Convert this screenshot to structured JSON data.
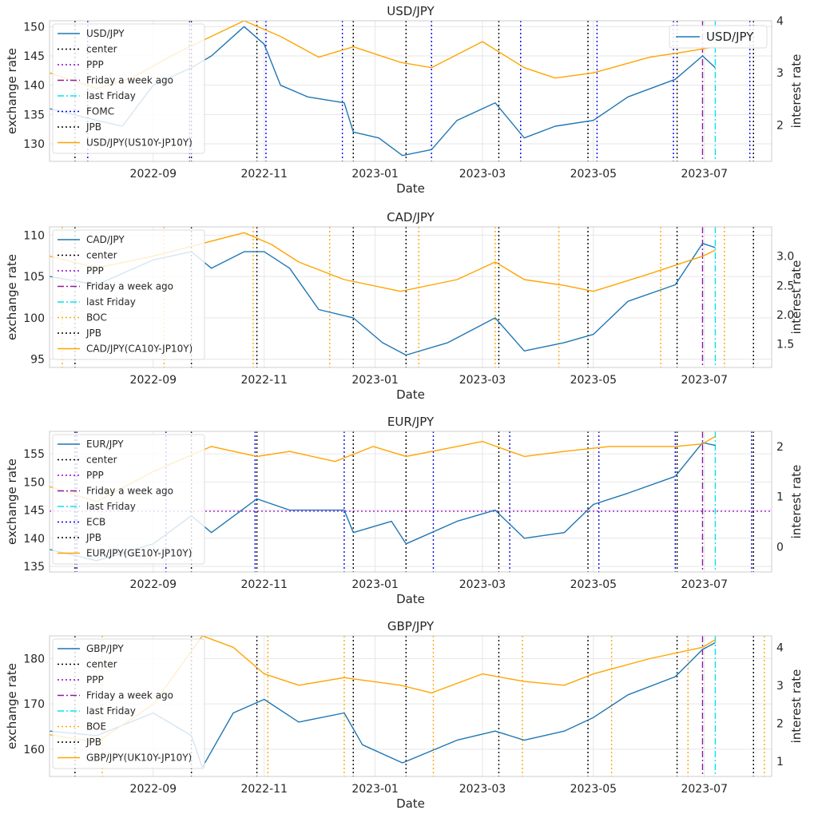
{
  "chart_data": [
    {
      "type": "line",
      "title": "USD/JPY",
      "xlabel": "Date",
      "ylabel": "exchange rate",
      "ylabel2": "interest rate",
      "x_range": [
        "2022-07-06",
        "2023-08-07"
      ],
      "x_ticks": [
        "2022-09",
        "2022-11",
        "2023-01",
        "2023-03",
        "2023-05",
        "2023-07"
      ],
      "ylim": [
        127,
        151
      ],
      "yticks": [
        130,
        135,
        140,
        145,
        150
      ],
      "ylim2": [
        1.3,
        4.0
      ],
      "yticks2": [
        2,
        3,
        4
      ],
      "grid": true,
      "legend_position": "upper-left",
      "secondary_legend_position": "upper-right",
      "secondary_legend_label": "USD/JPY",
      "series": [
        {
          "name": "USD/JPY",
          "axis": "left",
          "color": "#1f77b4",
          "x": [
            "2022-07-06",
            "2022-08-01",
            "2022-08-15",
            "2022-09-01",
            "2022-09-22",
            "2022-10-03",
            "2022-10-21",
            "2022-11-01",
            "2022-11-10",
            "2022-11-25",
            "2022-12-15",
            "2022-12-20",
            "2023-01-03",
            "2023-01-16",
            "2023-02-01",
            "2023-02-15",
            "2023-03-08",
            "2023-03-24",
            "2023-04-10",
            "2023-05-01",
            "2023-05-20",
            "2023-06-15",
            "2023-06-30",
            "2023-07-07"
          ],
          "y": [
            136,
            134,
            133,
            140,
            143,
            145,
            150,
            147,
            140,
            138,
            137,
            132,
            131,
            128,
            129,
            134,
            137,
            131,
            133,
            134,
            138,
            141,
            145,
            143
          ]
        },
        {
          "name": "USD/JPY(US10Y-JP10Y)",
          "axis": "right",
          "color": "#ffa500",
          "x": [
            "2022-07-06",
            "2022-08-01",
            "2022-08-20",
            "2022-09-15",
            "2022-10-21",
            "2022-11-10",
            "2022-12-01",
            "2022-12-20",
            "2023-01-15",
            "2023-02-01",
            "2023-03-01",
            "2023-03-24",
            "2023-04-10",
            "2023-05-01",
            "2023-06-01",
            "2023-06-20",
            "2023-07-07"
          ],
          "y": [
            3.0,
            2.7,
            2.9,
            3.4,
            4.0,
            3.7,
            3.3,
            3.5,
            3.2,
            3.1,
            3.6,
            3.1,
            2.9,
            3.0,
            3.3,
            3.4,
            3.5
          ]
        }
      ],
      "vlines": [
        {
          "name": "center",
          "style": "black-dotted",
          "x": [
            "2022-07-20"
          ]
        },
        {
          "name": "Friday a week ago",
          "style": "purple-dashdot",
          "x": [
            "2023-06-30"
          ]
        },
        {
          "name": "last Friday",
          "style": "cyan-dashdot",
          "x": [
            "2023-07-07"
          ]
        },
        {
          "name": "FOMC",
          "style": "blue-dotted",
          "x": [
            "2022-07-27",
            "2022-09-21",
            "2022-11-02",
            "2022-12-14",
            "2023-02-01",
            "2023-03-22",
            "2023-05-03",
            "2023-06-14",
            "2023-07-26"
          ]
        },
        {
          "name": "JPB",
          "style": "black-dotted",
          "x": [
            "2022-09-22",
            "2022-10-28",
            "2022-12-20",
            "2023-01-18",
            "2023-03-10",
            "2023-04-28",
            "2023-06-16",
            "2023-07-28"
          ]
        }
      ],
      "hlines": [],
      "legend": [
        "USD/JPY",
        "center",
        "PPP",
        "Friday a week ago",
        "last Friday",
        "FOMC",
        "JPB",
        "USD/JPY(US10Y-JP10Y)"
      ]
    },
    {
      "type": "line",
      "title": "CAD/JPY",
      "xlabel": "Date",
      "ylabel": "exchange rate",
      "ylabel2": "interest rate",
      "x_range": [
        "2022-07-06",
        "2023-08-07"
      ],
      "x_ticks": [
        "2022-09",
        "2022-11",
        "2023-01",
        "2023-03",
        "2023-05",
        "2023-07"
      ],
      "ylim": [
        94,
        111
      ],
      "yticks": [
        95,
        100,
        105,
        110
      ],
      "ylim2": [
        1.1,
        3.5
      ],
      "yticks2": [
        1.5,
        2.0,
        2.5,
        3.0
      ],
      "grid": true,
      "legend_position": "upper-left",
      "secondary_legend_position": "",
      "secondary_legend_label": "",
      "series": [
        {
          "name": "CAD/JPY",
          "axis": "left",
          "color": "#1f77b4",
          "x": [
            "2022-07-06",
            "2022-08-01",
            "2022-09-01",
            "2022-09-22",
            "2022-10-03",
            "2022-10-21",
            "2022-11-01",
            "2022-11-15",
            "2022-12-01",
            "2022-12-20",
            "2023-01-05",
            "2023-01-18",
            "2023-02-10",
            "2023-03-08",
            "2023-03-24",
            "2023-04-15",
            "2023-05-01",
            "2023-05-20",
            "2023-06-15",
            "2023-06-30",
            "2023-07-07"
          ],
          "y": [
            105,
            104,
            107,
            108,
            106,
            108,
            108,
            106,
            101,
            100,
            97,
            95.5,
            97,
            100,
            96,
            97,
            98,
            102,
            104,
            109,
            108.5
          ]
        },
        {
          "name": "CAD/JPY(CA10Y-JP10Y)",
          "axis": "right",
          "color": "#ffa500",
          "x": [
            "2022-07-06",
            "2022-08-01",
            "2022-09-01",
            "2022-10-21",
            "2022-11-05",
            "2022-11-20",
            "2022-12-15",
            "2023-01-15",
            "2023-02-15",
            "2023-03-08",
            "2023-03-24",
            "2023-04-15",
            "2023-05-01",
            "2023-06-01",
            "2023-06-30",
            "2023-07-07"
          ],
          "y": [
            3.0,
            2.8,
            3.0,
            3.4,
            3.2,
            2.9,
            2.6,
            2.4,
            2.6,
            2.9,
            2.6,
            2.5,
            2.4,
            2.7,
            3.0,
            3.1
          ]
        }
      ],
      "vlines": [
        {
          "name": "center",
          "style": "black-dotted",
          "x": [
            "2022-07-20"
          ]
        },
        {
          "name": "Friday a week ago",
          "style": "purple-dashdot",
          "x": [
            "2023-06-30"
          ]
        },
        {
          "name": "last Friday",
          "style": "cyan-dashdot",
          "x": [
            "2023-07-07"
          ]
        },
        {
          "name": "BOC",
          "style": "orange-dotted",
          "x": [
            "2022-07-13",
            "2022-09-07",
            "2022-10-26",
            "2022-12-07",
            "2023-01-25",
            "2023-03-08",
            "2023-04-12",
            "2023-06-07",
            "2023-07-12"
          ]
        },
        {
          "name": "JPB",
          "style": "black-dotted",
          "x": [
            "2022-09-22",
            "2022-10-28",
            "2022-12-20",
            "2023-01-18",
            "2023-03-10",
            "2023-04-28",
            "2023-06-16",
            "2023-07-28"
          ]
        }
      ],
      "hlines": [],
      "legend": [
        "CAD/JPY",
        "center",
        "PPP",
        "Friday a week ago",
        "last Friday",
        "BOC",
        "JPB",
        "CAD/JPY(CA10Y-JP10Y)"
      ]
    },
    {
      "type": "line",
      "title": "EUR/JPY",
      "xlabel": "Date",
      "ylabel": "exchange rate",
      "ylabel2": "interest rate",
      "x_range": [
        "2022-07-06",
        "2023-08-07"
      ],
      "x_ticks": [
        "2022-09",
        "2022-11",
        "2023-01",
        "2023-03",
        "2023-05",
        "2023-07"
      ],
      "ylim": [
        134,
        159
      ],
      "yticks": [
        135,
        140,
        145,
        150,
        155
      ],
      "ylim2": [
        -0.5,
        2.3
      ],
      "yticks2": [
        0,
        1,
        2
      ],
      "grid": true,
      "legend_position": "upper-left",
      "secondary_legend_position": "",
      "secondary_legend_label": "",
      "series": [
        {
          "name": "EUR/JPY",
          "axis": "left",
          "color": "#1f77b4",
          "x": [
            "2022-07-06",
            "2022-08-01",
            "2022-09-01",
            "2022-09-22",
            "2022-10-03",
            "2022-10-28",
            "2022-11-15",
            "2022-12-15",
            "2022-12-20",
            "2023-01-10",
            "2023-01-18",
            "2023-02-15",
            "2023-03-08",
            "2023-03-24",
            "2023-04-15",
            "2023-05-01",
            "2023-05-20",
            "2023-06-15",
            "2023-06-30",
            "2023-07-07"
          ],
          "y": [
            138,
            136,
            139,
            144,
            141,
            147,
            145,
            145,
            141,
            143,
            139,
            143,
            145,
            140,
            141,
            146,
            148,
            151,
            157,
            156.5
          ]
        },
        {
          "name": "EUR/JPY(GE10Y-JP10Y)",
          "axis": "right",
          "color": "#ffa500",
          "x": [
            "2022-07-06",
            "2022-08-01",
            "2022-09-01",
            "2022-10-03",
            "2022-10-28",
            "2022-11-15",
            "2022-12-10",
            "2022-12-31",
            "2023-01-18",
            "2023-02-15",
            "2023-03-01",
            "2023-03-24",
            "2023-04-15",
            "2023-05-10",
            "2023-06-15",
            "2023-06-30",
            "2023-07-07"
          ],
          "y": [
            1.2,
            0.9,
            1.5,
            2.0,
            1.8,
            1.9,
            1.7,
            2.0,
            1.8,
            2.0,
            2.1,
            1.8,
            1.9,
            2.0,
            2.0,
            2.05,
            2.2
          ]
        }
      ],
      "vlines": [
        {
          "name": "center",
          "style": "black-dotted",
          "x": [
            "2022-07-20"
          ]
        },
        {
          "name": "Friday a week ago",
          "style": "purple-dashdot",
          "x": [
            "2023-06-30"
          ]
        },
        {
          "name": "last Friday",
          "style": "cyan-dashdot",
          "x": [
            "2023-07-07"
          ]
        },
        {
          "name": "ECB",
          "style": "blue-dotted",
          "x": [
            "2022-07-21",
            "2022-09-08",
            "2022-10-27",
            "2022-12-15",
            "2023-02-02",
            "2023-03-16",
            "2023-05-04",
            "2023-06-15",
            "2023-07-27"
          ]
        },
        {
          "name": "JPB",
          "style": "black-dotted",
          "x": [
            "2022-09-22",
            "2022-10-28",
            "2022-12-20",
            "2023-01-18",
            "2023-03-10",
            "2023-04-28",
            "2023-06-16",
            "2023-07-28"
          ]
        }
      ],
      "hlines": [
        {
          "name": "PPP",
          "style": "purple-dotted",
          "y": 144.8
        }
      ],
      "legend": [
        "EUR/JPY",
        "center",
        "PPP",
        "Friday a week ago",
        "last Friday",
        "ECB",
        "JPB",
        "EUR/JPY(GE10Y-JP10Y)"
      ]
    },
    {
      "type": "line",
      "title": "GBP/JPY",
      "xlabel": "Date",
      "ylabel": "exchange rate",
      "ylabel2": "interest rate",
      "x_range": [
        "2022-07-06",
        "2023-08-07"
      ],
      "x_ticks": [
        "2022-09",
        "2022-11",
        "2023-01",
        "2023-03",
        "2023-05",
        "2023-07"
      ],
      "ylim": [
        154,
        185
      ],
      "yticks": [
        160,
        170,
        180
      ],
      "ylim2": [
        0.6,
        4.3
      ],
      "yticks2": [
        1,
        2,
        3,
        4
      ],
      "grid": true,
      "legend_position": "upper-left",
      "secondary_legend_position": "",
      "secondary_legend_label": "",
      "series": [
        {
          "name": "GBP/JPY",
          "axis": "left",
          "color": "#1f77b4",
          "x": [
            "2022-07-06",
            "2022-08-01",
            "2022-09-01",
            "2022-09-22",
            "2022-09-28",
            "2022-10-15",
            "2022-11-01",
            "2022-11-20",
            "2022-12-15",
            "2022-12-25",
            "2023-01-16",
            "2023-02-15",
            "2023-03-08",
            "2023-03-24",
            "2023-04-15",
            "2023-05-01",
            "2023-05-20",
            "2023-06-15",
            "2023-06-30",
            "2023-07-07"
          ],
          "y": [
            164,
            163,
            168,
            163,
            156,
            168,
            171,
            166,
            168,
            161,
            157,
            162,
            164,
            162,
            164,
            167,
            172,
            176,
            182,
            183.5
          ]
        },
        {
          "name": "GBP/JPY(UK10Y-JP10Y)",
          "axis": "right",
          "color": "#ffa500",
          "x": [
            "2022-07-06",
            "2022-08-01",
            "2022-09-01",
            "2022-09-28",
            "2022-10-15",
            "2022-11-01",
            "2022-11-20",
            "2022-12-15",
            "2023-01-15",
            "2023-02-01",
            "2023-03-01",
            "2023-03-24",
            "2023-04-15",
            "2023-05-01",
            "2023-06-01",
            "2023-06-30",
            "2023-07-07"
          ],
          "y": [
            1.7,
            1.5,
            2.5,
            4.3,
            4.0,
            3.3,
            3.0,
            3.2,
            3.0,
            2.8,
            3.3,
            3.1,
            3.0,
            3.3,
            3.7,
            4.0,
            4.2
          ]
        }
      ],
      "vlines": [
        {
          "name": "center",
          "style": "black-dotted",
          "x": [
            "2022-07-20"
          ]
        },
        {
          "name": "Friday a week ago",
          "style": "purple-dashdot",
          "x": [
            "2023-06-30"
          ]
        },
        {
          "name": "last Friday",
          "style": "cyan-dashdot",
          "x": [
            "2023-07-07"
          ]
        },
        {
          "name": "BOE",
          "style": "orange-dotted",
          "x": [
            "2022-08-04",
            "2022-09-22",
            "2022-11-03",
            "2022-12-15",
            "2023-02-02",
            "2023-03-23",
            "2023-05-11",
            "2023-06-22",
            "2023-08-03"
          ]
        },
        {
          "name": "JPB",
          "style": "black-dotted",
          "x": [
            "2022-09-22",
            "2022-10-28",
            "2022-12-20",
            "2023-01-18",
            "2023-03-10",
            "2023-04-28",
            "2023-06-16",
            "2023-07-28"
          ]
        }
      ],
      "hlines": [],
      "legend": [
        "GBP/JPY",
        "center",
        "PPP",
        "Friday a week ago",
        "last Friday",
        "BOE",
        "JPB",
        "GBP/JPY(UK10Y-JP10Y)"
      ]
    }
  ]
}
